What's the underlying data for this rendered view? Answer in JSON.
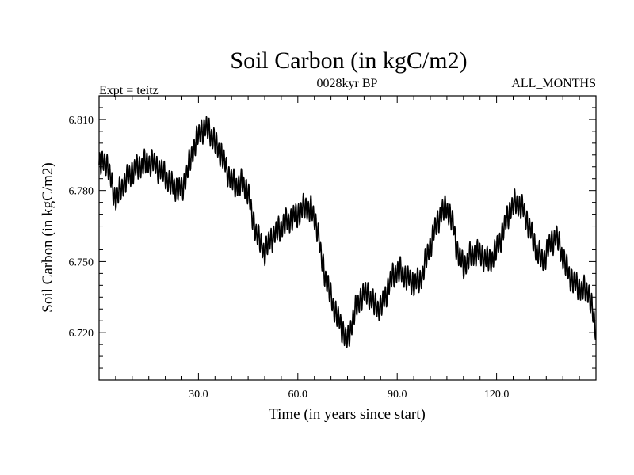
{
  "chart_data": {
    "type": "line",
    "title": "Soil Carbon (in kgC/m2)",
    "subtitle_left": "Expt = teitz",
    "subtitle_center": "0028kyr BP",
    "subtitle_right": "ALL_MONTHS",
    "xlabel": "Time (in years since start)",
    "ylabel": "Soil Carbon (in kgC/m2)",
    "xlim": [
      0,
      150
    ],
    "ylim": [
      6.7,
      6.82
    ],
    "xticks": [
      {
        "value": 30,
        "label": "30.0"
      },
      {
        "value": 60,
        "label": "60.0"
      },
      {
        "value": 90,
        "label": "90.0"
      },
      {
        "value": 120,
        "label": "120.0"
      }
    ],
    "yticks": [
      {
        "value": 6.72,
        "label": "6.720"
      },
      {
        "value": 6.75,
        "label": "6.750"
      },
      {
        "value": 6.78,
        "label": "6.780"
      },
      {
        "value": 6.81,
        "label": "6.810"
      }
    ],
    "trend": [
      [
        0,
        6.79
      ],
      [
        2,
        6.793
      ],
      [
        4,
        6.782
      ],
      [
        5,
        6.776
      ],
      [
        7,
        6.782
      ],
      [
        10,
        6.788
      ],
      [
        13,
        6.791
      ],
      [
        16,
        6.792
      ],
      [
        19,
        6.788
      ],
      [
        22,
        6.782
      ],
      [
        25,
        6.78
      ],
      [
        27,
        6.79
      ],
      [
        29,
        6.8
      ],
      [
        31,
        6.806
      ],
      [
        33,
        6.806
      ],
      [
        35,
        6.8
      ],
      [
        37,
        6.795
      ],
      [
        39,
        6.787
      ],
      [
        41,
        6.782
      ],
      [
        43,
        6.783
      ],
      [
        45,
        6.78
      ],
      [
        46,
        6.77
      ],
      [
        48,
        6.76
      ],
      [
        50,
        6.754
      ],
      [
        52,
        6.76
      ],
      [
        54,
        6.763
      ],
      [
        56,
        6.766
      ],
      [
        58,
        6.768
      ],
      [
        60,
        6.77
      ],
      [
        62,
        6.773
      ],
      [
        64,
        6.772
      ],
      [
        66,
        6.764
      ],
      [
        67,
        6.752
      ],
      [
        69,
        6.74
      ],
      [
        71,
        6.73
      ],
      [
        73,
        6.723
      ],
      [
        75,
        6.716
      ],
      [
        77,
        6.728
      ],
      [
        79,
        6.735
      ],
      [
        81,
        6.737
      ],
      [
        83,
        6.732
      ],
      [
        85,
        6.73
      ],
      [
        87,
        6.738
      ],
      [
        89,
        6.745
      ],
      [
        91,
        6.746
      ],
      [
        93,
        6.743
      ],
      [
        95,
        6.741
      ],
      [
        97,
        6.742
      ],
      [
        99,
        6.752
      ],
      [
        101,
        6.762
      ],
      [
        103,
        6.77
      ],
      [
        105,
        6.773
      ],
      [
        107,
        6.765
      ],
      [
        108,
        6.755
      ],
      [
        110,
        6.748
      ],
      [
        112,
        6.752
      ],
      [
        114,
        6.754
      ],
      [
        116,
        6.752
      ],
      [
        118,
        6.75
      ],
      [
        120,
        6.755
      ],
      [
        122,
        6.763
      ],
      [
        124,
        6.772
      ],
      [
        126,
        6.775
      ],
      [
        128,
        6.772
      ],
      [
        130,
        6.764
      ],
      [
        132,
        6.755
      ],
      [
        134,
        6.75
      ],
      [
        136,
        6.757
      ],
      [
        138,
        6.761
      ],
      [
        140,
        6.752
      ],
      [
        142,
        6.744
      ],
      [
        144,
        6.74
      ],
      [
        146,
        6.738
      ],
      [
        148,
        6.737
      ],
      [
        149,
        6.728
      ],
      [
        150,
        6.72
      ]
    ],
    "oscillation_amplitude": 0.0045,
    "oscillation_period_years": 0.75,
    "grid": false,
    "legend": "none"
  }
}
